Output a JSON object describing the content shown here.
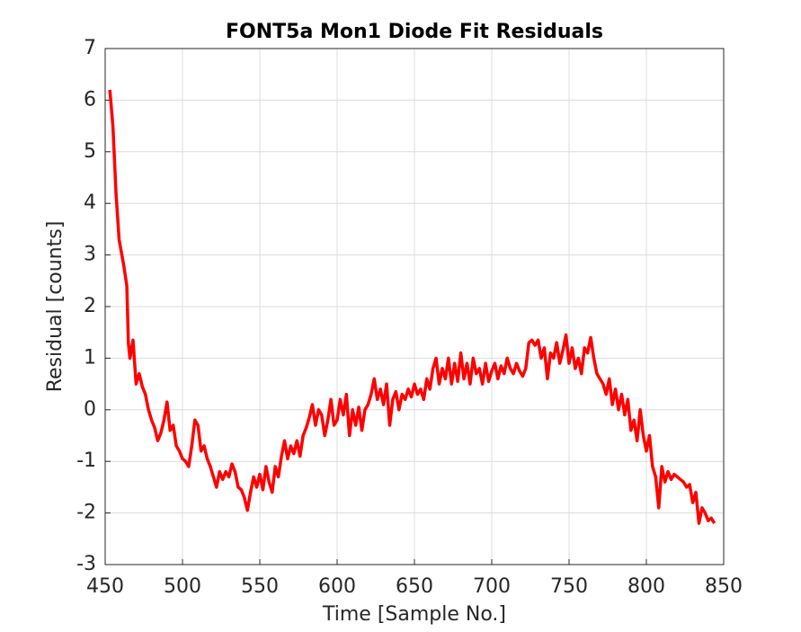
{
  "chart_data": {
    "type": "line",
    "title": "FONT5a Mon1 Diode Fit Residuals",
    "x_label": "Time [Sample No.]",
    "y_label": "Residual [counts]",
    "xlim": [
      450,
      850
    ],
    "xticks": [
      450,
      500,
      550,
      600,
      650,
      700,
      750,
      800,
      850
    ],
    "ylim": [
      -3,
      7
    ],
    "yticks": [
      -3,
      -2,
      -1,
      0,
      1,
      2,
      3,
      4,
      5,
      6,
      7
    ],
    "grid": true,
    "series": [
      {
        "color": "#ff0000",
        "x": [
          453,
          455,
          457,
          459,
          462,
          464,
          465,
          466,
          468,
          470,
          472,
          474,
          476,
          478,
          480,
          482,
          484,
          486,
          488,
          490,
          492,
          494,
          496,
          498,
          500,
          502,
          504,
          506,
          508,
          510,
          512,
          514,
          516,
          518,
          520,
          522,
          524,
          526,
          528,
          530,
          532,
          534,
          536,
          538,
          540,
          542,
          544,
          546,
          548,
          550,
          552,
          554,
          556,
          558,
          560,
          562,
          564,
          566,
          568,
          570,
          572,
          574,
          576,
          578,
          580,
          582,
          584,
          586,
          588,
          590,
          592,
          594,
          596,
          598,
          600,
          602,
          604,
          606,
          608,
          610,
          612,
          614,
          616,
          618,
          620,
          622,
          624,
          626,
          628,
          630,
          632,
          634,
          636,
          638,
          640,
          642,
          644,
          646,
          648,
          650,
          652,
          654,
          656,
          658,
          660,
          662,
          664,
          666,
          668,
          670,
          672,
          674,
          676,
          678,
          680,
          682,
          684,
          686,
          688,
          690,
          692,
          694,
          696,
          698,
          700,
          702,
          704,
          706,
          708,
          710,
          712,
          714,
          716,
          718,
          720,
          722,
          724,
          726,
          728,
          730,
          732,
          734,
          736,
          738,
          740,
          742,
          744,
          746,
          748,
          750,
          752,
          754,
          756,
          758,
          760,
          762,
          764,
          766,
          768,
          770,
          772,
          774,
          776,
          778,
          780,
          782,
          784,
          786,
          788,
          790,
          792,
          794,
          796,
          798,
          800,
          802,
          804,
          806,
          808,
          810,
          812,
          814,
          816,
          818,
          820,
          822,
          824,
          826,
          828,
          830,
          832,
          834,
          836,
          838,
          840,
          842,
          844
        ],
        "values": [
          6.2,
          5.5,
          4.2,
          3.3,
          2.8,
          2.4,
          1.3,
          1.0,
          1.35,
          0.5,
          0.7,
          0.45,
          0.3,
          0.0,
          -0.2,
          -0.35,
          -0.6,
          -0.45,
          -0.2,
          0.15,
          -0.4,
          -0.3,
          -0.7,
          -0.8,
          -0.95,
          -1.0,
          -1.1,
          -0.7,
          -0.2,
          -0.3,
          -0.8,
          -0.7,
          -0.95,
          -1.1,
          -1.3,
          -1.5,
          -1.2,
          -1.35,
          -1.2,
          -1.3,
          -1.05,
          -1.2,
          -1.5,
          -1.55,
          -1.7,
          -1.95,
          -1.6,
          -1.3,
          -1.5,
          -1.25,
          -1.55,
          -1.1,
          -1.4,
          -1.6,
          -1.1,
          -1.3,
          -0.9,
          -0.6,
          -0.95,
          -0.7,
          -0.85,
          -0.6,
          -0.9,
          -0.5,
          -0.35,
          -0.15,
          0.1,
          -0.3,
          0.0,
          -0.1,
          -0.5,
          -0.2,
          0.2,
          -0.3,
          -0.2,
          0.2,
          -0.1,
          0.3,
          -0.5,
          0.0,
          -0.3,
          0.05,
          -0.4,
          0.0,
          0.1,
          0.3,
          0.6,
          0.2,
          0.4,
          0.1,
          0.5,
          -0.3,
          0.2,
          0.35,
          0.0,
          0.3,
          0.2,
          0.4,
          0.25,
          0.5,
          0.3,
          0.4,
          0.2,
          0.6,
          0.4,
          0.8,
          1.0,
          0.5,
          0.8,
          0.6,
          1.0,
          0.5,
          0.9,
          0.55,
          1.1,
          0.6,
          0.9,
          0.5,
          1.0,
          0.7,
          0.8,
          0.5,
          0.9,
          0.55,
          0.75,
          0.9,
          0.6,
          0.85,
          0.7,
          1.0,
          0.8,
          0.7,
          0.9,
          0.75,
          0.65,
          0.8,
          1.3,
          1.35,
          1.25,
          1.35,
          1.0,
          1.2,
          0.6,
          1.1,
          1.0,
          1.3,
          0.9,
          1.15,
          1.45,
          0.9,
          1.2,
          0.8,
          1.0,
          0.7,
          1.2,
          1.1,
          1.4,
          1.0,
          0.7,
          0.6,
          0.5,
          0.3,
          0.6,
          0.1,
          0.4,
          0.0,
          0.3,
          -0.1,
          0.2,
          -0.4,
          -0.2,
          -0.6,
          0.0,
          -0.5,
          -0.8,
          -0.5,
          -1.1,
          -1.3,
          -1.9,
          -1.1,
          -1.4,
          -1.2,
          -1.35,
          -1.25,
          -1.3,
          -1.35,
          -1.4,
          -1.5,
          -1.45,
          -1.8,
          -1.6,
          -2.2,
          -1.9,
          -2.0,
          -2.15,
          -2.1,
          -2.2
        ]
      }
    ]
  }
}
